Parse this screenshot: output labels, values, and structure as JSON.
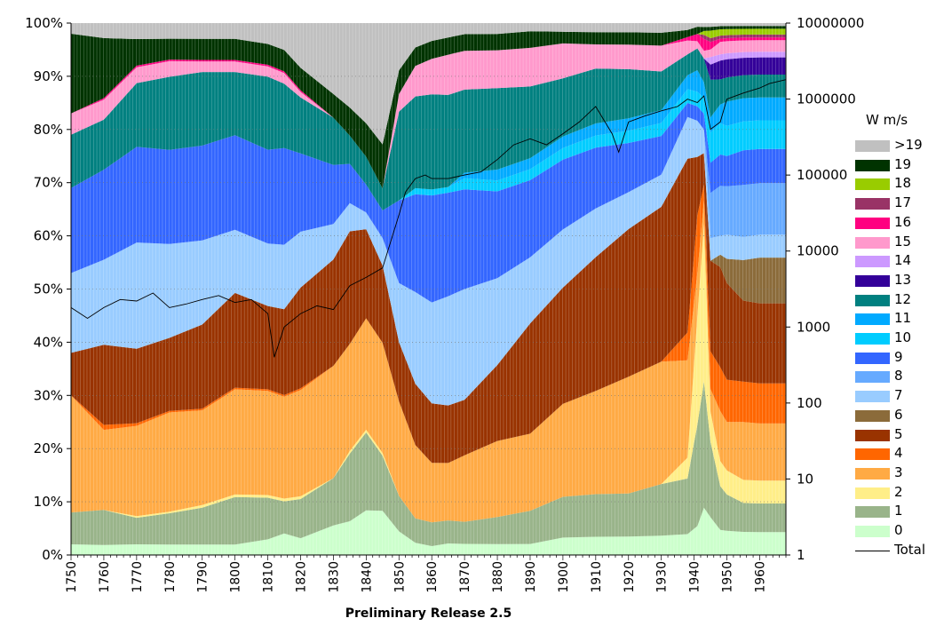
{
  "chart_data": {
    "type": "area",
    "stacked": true,
    "percent_stacked": true,
    "title": "Preliminary Release 2.5",
    "legend_title": "W  m/s",
    "legend_position": "right",
    "x_ticks": [
      "1750",
      "1760",
      "1770",
      "1780",
      "1790",
      "1800",
      "1810",
      "1820",
      "1830",
      "1840",
      "1850",
      "1860",
      "1870",
      "1880",
      "1890",
      "1900",
      "1910",
      "1920",
      "1930",
      "1940",
      "1950",
      "1960"
    ],
    "xlim": [
      1750,
      1968
    ],
    "y_left_ticks": [
      "0%",
      "10%",
      "20%",
      "30%",
      "40%",
      "50%",
      "60%",
      "70%",
      "80%",
      "90%",
      "100%"
    ],
    "y_right_ticks": [
      "1",
      "10",
      "100",
      "1000",
      "10000",
      "100000",
      "1000000",
      "10000000"
    ],
    "y_right_scale": "log",
    "y_right_lim": [
      1,
      10000000
    ],
    "grid": "horizontal dotted",
    "knot_years": [
      1750,
      1760,
      1770,
      1780,
      1790,
      1800,
      1810,
      1815,
      1820,
      1830,
      1835,
      1840,
      1845,
      1850,
      1855,
      1860,
      1865,
      1870,
      1880,
      1890,
      1900,
      1910,
      1920,
      1930,
      1938,
      1941,
      1943,
      1945,
      1948,
      1950,
      1955,
      1960,
      1968
    ],
    "series": [
      {
        "name": ">19",
        "color": "#c0c0c0",
        "values": [
          2,
          3,
          3,
          3,
          3,
          3,
          4,
          5,
          8,
          12,
          15,
          18,
          22,
          8,
          4,
          3,
          2.5,
          2,
          2,
          1.5,
          1.5,
          1.5,
          1.5,
          1.5,
          1,
          0.5,
          0.5,
          0.5,
          0.5,
          0.5,
          0.5,
          0.5,
          0.5
        ]
      },
      {
        "name": "19",
        "color": "#003300",
        "values": [
          15,
          12,
          5,
          4,
          4,
          4,
          4,
          4,
          4,
          4,
          5,
          6,
          8,
          4,
          3,
          3,
          3,
          3,
          3,
          3,
          2,
          2,
          2,
          2,
          1,
          1,
          0.5,
          0.5,
          0.5,
          0.5,
          0.5,
          0.5,
          0.5
        ]
      },
      {
        "name": "18",
        "color": "#99cc00",
        "values": [
          0,
          0,
          0,
          0,
          0,
          0,
          0,
          0,
          0,
          0,
          0,
          0,
          0,
          0,
          0,
          0,
          0,
          0,
          0,
          0,
          0,
          0,
          0,
          0,
          0,
          0,
          0.5,
          1,
          1,
          1,
          1,
          1,
          1
        ]
      },
      {
        "name": "17",
        "color": "#993366",
        "values": [
          0,
          0,
          0,
          0,
          0,
          0,
          0,
          0,
          0,
          0,
          0,
          0,
          0,
          0,
          0,
          0,
          0,
          0,
          0,
          0,
          0,
          0,
          0,
          0,
          0,
          0,
          0.5,
          0.5,
          0.5,
          0.5,
          0.5,
          0.5,
          0.5
        ]
      },
      {
        "name": "16",
        "color": "#ff0080",
        "values": [
          0,
          0.3,
          0.3,
          0.3,
          0.3,
          0.3,
          0.3,
          0.3,
          0.3,
          0,
          0,
          0,
          0,
          0,
          0,
          0,
          0,
          0,
          0,
          0,
          0,
          0,
          0,
          0,
          0.5,
          1,
          1.5,
          1,
          0.5,
          0.5,
          0.5,
          0.5,
          0.5
        ]
      },
      {
        "name": "15",
        "color": "#ff99cc",
        "values": [
          4,
          4,
          3,
          3,
          2,
          2,
          2,
          2,
          1,
          0,
          0,
          0,
          0,
          3,
          5,
          6,
          7,
          7,
          7,
          7,
          6,
          4,
          4,
          4,
          2,
          1,
          1,
          1,
          2,
          2,
          2,
          2,
          2
        ]
      },
      {
        "name": "14",
        "color": "#cc99ff",
        "values": [
          0,
          0,
          0,
          0,
          0,
          0,
          0,
          0,
          0,
          0,
          0,
          0,
          0,
          0,
          0,
          0,
          0,
          0,
          0,
          0,
          0,
          0,
          0,
          0,
          0,
          0,
          0,
          1,
          1,
          1,
          1,
          1,
          1
        ]
      },
      {
        "name": "13",
        "color": "#330099",
        "values": [
          0,
          0,
          0,
          0,
          0,
          0,
          0,
          0,
          0,
          0,
          0,
          0,
          0,
          0,
          0,
          0,
          0,
          0,
          0,
          0,
          0,
          0,
          0,
          0,
          0,
          0,
          0,
          2,
          3,
          3,
          3,
          3,
          3
        ]
      },
      {
        "name": "12",
        "color": "#008080",
        "values": [
          10,
          10,
          12,
          14,
          14,
          12,
          14,
          12,
          10,
          8,
          5,
          5,
          4,
          15,
          15,
          16,
          16,
          15,
          15,
          13,
          10,
          9,
          8,
          6,
          3,
          3,
          3,
          5,
          4,
          4,
          4,
          4,
          4
        ]
      },
      {
        "name": "11",
        "color": "#00aaff",
        "values": [
          0,
          0,
          0,
          0,
          0,
          0,
          0,
          0,
          0,
          0,
          0,
          0,
          0,
          0,
          0,
          0,
          0,
          1,
          2,
          2,
          2,
          2,
          2,
          2,
          2,
          3,
          2,
          2,
          3,
          4,
          4,
          4,
          4
        ]
      },
      {
        "name": "10",
        "color": "#00ccff",
        "values": [
          0,
          0,
          0,
          0,
          0,
          0,
          0,
          0,
          0,
          0,
          0,
          0,
          0,
          0,
          1,
          1,
          1,
          2,
          2,
          2,
          2,
          2,
          2,
          2,
          2,
          2,
          2,
          4,
          5,
          5,
          5,
          5,
          5
        ]
      },
      {
        "name": "9",
        "color": "#3366ff",
        "values": [
          16,
          18,
          18,
          18,
          18,
          18,
          18,
          18,
          14,
          10,
          7,
          5,
          5,
          14,
          16,
          18,
          18,
          18,
          16,
          14,
          12,
          10,
          8,
          6,
          2,
          2,
          2,
          4,
          5,
          5,
          6,
          6,
          6
        ]
      },
      {
        "name": "8",
        "color": "#66aaff",
        "values": [
          0,
          0,
          0,
          0,
          0,
          0,
          0,
          0,
          0,
          0,
          0,
          0,
          0,
          0,
          0,
          0,
          0,
          0,
          0,
          0,
          0,
          0,
          0,
          0,
          0,
          0,
          0,
          6,
          8,
          8,
          9,
          9,
          9
        ]
      },
      {
        "name": "7",
        "color": "#99ccff",
        "values": [
          15,
          17,
          20,
          18,
          16,
          12,
          12,
          12,
          10,
          6,
          5,
          3,
          5,
          10,
          15,
          17,
          19,
          20,
          16,
          12,
          10,
          8,
          6,
          5,
          6,
          5,
          3,
          3,
          3,
          4,
          4,
          4,
          4
        ]
      },
      {
        "name": "6",
        "color": "#8b6b3a",
        "values": [
          0,
          0,
          0,
          0,
          0,
          0,
          0,
          0,
          0,
          0,
          0,
          0,
          0,
          0,
          0,
          0,
          0,
          0,
          0,
          0,
          0,
          0,
          0,
          0,
          0,
          0,
          0,
          0,
          2,
          4,
          7,
          8,
          8
        ]
      },
      {
        "name": "5",
        "color": "#993300",
        "values": [
          8,
          16,
          14,
          14,
          16,
          18,
          16,
          16,
          18,
          18,
          20,
          16,
          14,
          10,
          10,
          10,
          10,
          10,
          14,
          20,
          20,
          22,
          24,
          24,
          25,
          8,
          4,
          12,
          16,
          16,
          14,
          14,
          14
        ]
      },
      {
        "name": "4",
        "color": "#ff6600",
        "values": [
          0,
          1,
          0.5,
          0.3,
          0.3,
          0.3,
          0.3,
          0.3,
          0.3,
          0,
          0,
          0,
          0,
          0,
          0,
          0,
          0,
          0,
          0,
          0,
          0,
          0,
          0,
          0,
          4,
          8,
          2,
          5,
          7,
          7,
          7,
          7,
          7
        ]
      },
      {
        "name": "3",
        "color": "#ffaa44",
        "values": [
          22,
          16,
          17,
          19,
          18,
          20,
          20,
          19,
          19,
          19,
          19,
          20,
          20,
          16,
          12,
          10,
          10,
          12,
          14,
          14,
          16,
          17,
          19,
          19,
          14,
          6,
          3,
          3,
          8,
          8,
          10,
          10,
          10
        ]
      },
      {
        "name": "2",
        "color": "#ffee88",
        "values": [
          0,
          0,
          0.3,
          0.3,
          0.5,
          0.5,
          0.5,
          0.5,
          0.5,
          0,
          0.5,
          0.5,
          0.5,
          0,
          0,
          0,
          0,
          0,
          0,
          0,
          0,
          0,
          0,
          0,
          3,
          15,
          20,
          4,
          4,
          4,
          4,
          4,
          4
        ]
      },
      {
        "name": "1",
        "color": "#99b48a",
        "values": [
          6,
          7,
          5,
          6,
          7,
          9,
          8,
          6,
          7,
          8,
          12,
          14,
          10,
          6,
          4,
          4,
          4,
          4,
          5,
          6,
          7,
          7,
          7,
          8,
          8,
          14,
          16,
          10,
          7,
          6,
          5,
          5,
          5
        ]
      },
      {
        "name": "0",
        "color": "#ccffcc",
        "values": [
          2,
          2,
          2,
          2,
          2,
          2,
          3,
          4,
          3,
          5,
          6,
          8,
          8,
          4,
          2,
          1.5,
          2,
          2,
          2,
          2,
          3,
          3,
          3,
          3,
          3,
          4,
          6,
          5,
          4,
          4,
          4,
          4,
          4
        ]
      }
    ],
    "total_line": {
      "name": "Total",
      "color": "#000000",
      "axis": "right",
      "years": [
        1750,
        1755,
        1760,
        1765,
        1770,
        1775,
        1780,
        1785,
        1790,
        1795,
        1800,
        1805,
        1810,
        1812,
        1815,
        1820,
        1825,
        1830,
        1835,
        1840,
        1845,
        1850,
        1852,
        1855,
        1858,
        1860,
        1865,
        1870,
        1875,
        1880,
        1885,
        1890,
        1895,
        1900,
        1905,
        1910,
        1915,
        1917,
        1920,
        1925,
        1930,
        1935,
        1938,
        1941,
        1943,
        1945,
        1948,
        1950,
        1955,
        1960,
        1963,
        1968
      ],
      "values": [
        1800,
        1300,
        1800,
        2300,
        2200,
        2800,
        1800,
        2000,
        2300,
        2600,
        2100,
        2300,
        1500,
        400,
        1000,
        1500,
        1900,
        1700,
        3500,
        4500,
        6000,
        30000,
        60000,
        90000,
        100000,
        90000,
        90000,
        100000,
        110000,
        160000,
        250000,
        300000,
        250000,
        350000,
        500000,
        800000,
        350000,
        200000,
        500000,
        600000,
        700000,
        800000,
        1000000,
        900000,
        1100000,
        400000,
        500000,
        1000000,
        1200000,
        1400000,
        1600000,
        1800000
      ]
    }
  }
}
